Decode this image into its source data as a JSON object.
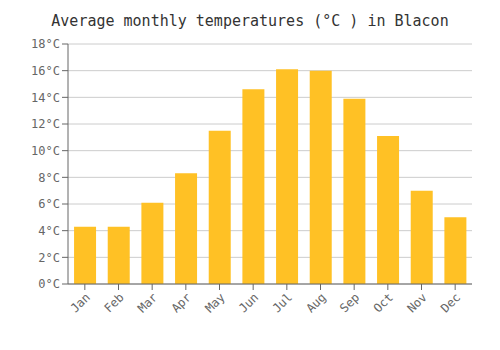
{
  "chart_data": {
    "type": "bar",
    "title": "Average monthly temperatures (°C ) in Blacon",
    "categories": [
      "Jan",
      "Feb",
      "Mar",
      "Apr",
      "May",
      "Jun",
      "Jul",
      "Aug",
      "Sep",
      "Oct",
      "Nov",
      "Dec"
    ],
    "values": [
      4.3,
      4.3,
      6.1,
      8.3,
      11.5,
      14.6,
      16.1,
      16.0,
      13.9,
      11.1,
      7.0,
      5.0
    ],
    "color": "#FFC125",
    "ylim": [
      0,
      18
    ],
    "yticks": [
      {
        "value": 0,
        "label": "0°C"
      },
      {
        "value": 2,
        "label": "2°C"
      },
      {
        "value": 4,
        "label": "4°C"
      },
      {
        "value": 6,
        "label": "6°C"
      },
      {
        "value": 8,
        "label": "8°C"
      },
      {
        "value": 10,
        "label": "10°C"
      },
      {
        "value": 12,
        "label": "12°C"
      },
      {
        "value": 14,
        "label": "14°C"
      },
      {
        "value": 16,
        "label": "16°C"
      },
      {
        "value": 18,
        "label": "18°C"
      }
    ],
    "grid": true
  }
}
